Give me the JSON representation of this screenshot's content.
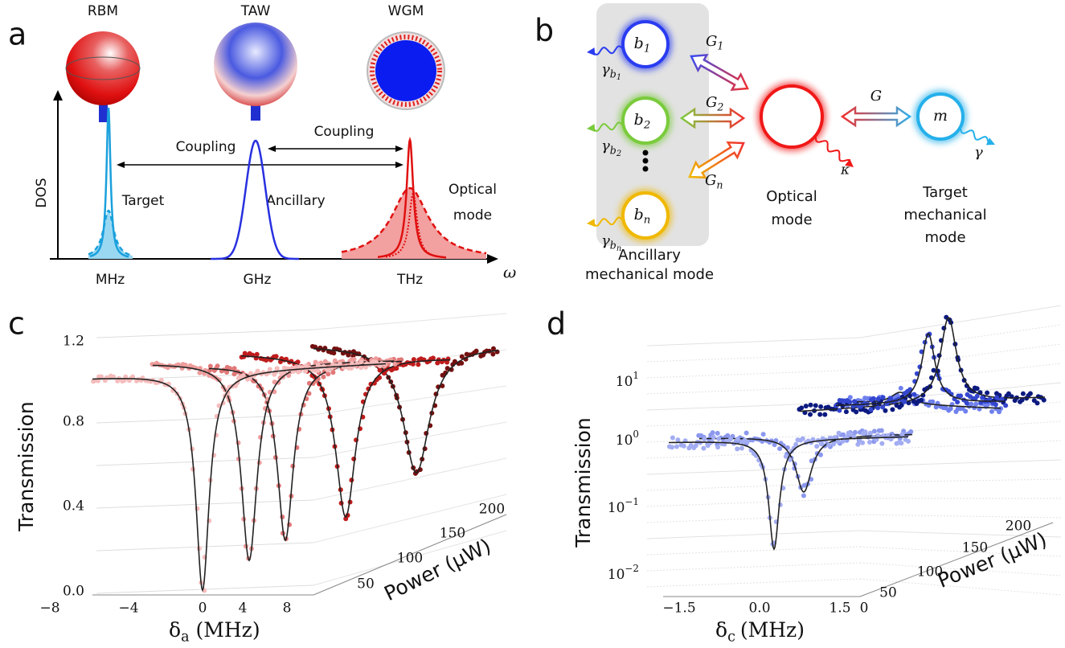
{
  "panels": {
    "a": {
      "label": "a",
      "modes": [
        "RBM",
        "TAW",
        "WGM"
      ],
      "y_axis": "DOS",
      "x_axis": "ω",
      "frequencies": [
        "MHz",
        "GHz",
        "THz"
      ],
      "peaks": [
        "Target",
        "Ancillary"
      ],
      "optical": [
        "Optical",
        "mode"
      ],
      "coupling": [
        "Coupling",
        "Coupling"
      ]
    },
    "b": {
      "label": "b",
      "ancillary_modes": [
        {
          "base": "b",
          "sub": "1"
        },
        {
          "base": "b",
          "sub": "2"
        },
        {
          "base": "b",
          "sub": "n"
        }
      ],
      "dampings": [
        {
          "base": "γ",
          "sub": "b",
          "subsub": "1"
        },
        {
          "base": "γ",
          "sub": "b",
          "subsub": "2"
        },
        {
          "base": "γ",
          "sub": "b",
          "subsub": "n"
        }
      ],
      "couplings": [
        {
          "base": "G",
          "sub": "1"
        },
        {
          "base": "G",
          "sub": "2"
        },
        {
          "base": "G",
          "sub": "n"
        }
      ],
      "G": "G",
      "kappa": "κ",
      "target_symbol": "m",
      "gamma": "γ",
      "optical": [
        "Optical",
        "mode"
      ],
      "target": [
        "Target",
        "mechanical",
        "mode"
      ],
      "ancillary": [
        "Ancillary",
        "mechanical mode"
      ]
    },
    "c": {
      "label": "c",
      "y_label": "Transmission",
      "yticks": [
        "1.2",
        "0.8",
        "0.4",
        "0.0"
      ],
      "xticks": [
        "−8",
        "−4",
        "0",
        "4",
        "8"
      ],
      "x_label": {
        "base": "δ",
        "sub": "a",
        "unit": "(MHz)"
      },
      "power_ticks": [
        "50",
        "100",
        "150",
        "200"
      ],
      "power_label": "Power (μW)"
    },
    "d": {
      "label": "d",
      "y_label": "Transmission",
      "yticks": [
        {
          "base": "10",
          "exp": "1"
        },
        {
          "base": "10",
          "exp": "0"
        },
        {
          "base": "10",
          "exp": "−1"
        },
        {
          "base": "10",
          "exp": "−2"
        }
      ],
      "xticks": [
        "−1.5",
        "0.0",
        "1.5",
        "0"
      ],
      "x_label": {
        "base": "δ",
        "sub": "c",
        "unit": "(MHz)"
      },
      "power_ticks": [
        "50",
        "100",
        "150",
        "200"
      ],
      "power_label": "Power (μW)"
    }
  }
}
